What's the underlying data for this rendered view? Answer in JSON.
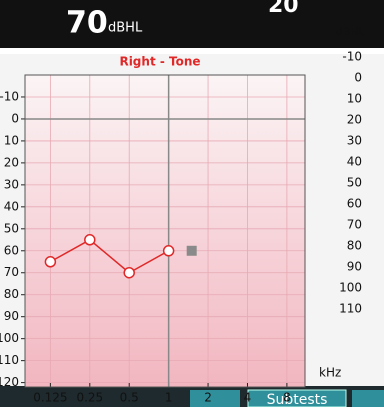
{
  "header": {
    "level": "70",
    "unit": "dBHL",
    "secondary": "20"
  },
  "right_panel": {
    "unit": "dBHL",
    "labels": [
      "-10",
      "0",
      "10",
      "20",
      "30",
      "40",
      "50",
      "60",
      "70",
      "80",
      "90",
      "100",
      "110"
    ]
  },
  "buttons": [
    "Subtests"
  ],
  "chart_data": {
    "type": "line",
    "title": "Right - Tone",
    "x_label": "kHz",
    "x": [
      0.125,
      0.25,
      0.5,
      1
    ],
    "series": [
      {
        "color": "#e02828",
        "values": [
          65,
          55,
          70,
          60
        ]
      }
    ],
    "cursor": {
      "x": 1.5,
      "y": 60,
      "color": "#8a8a8a"
    },
    "xlim": [
      0.08,
      11
    ],
    "xticks": [
      0.125,
      0.25,
      0.5,
      1,
      2,
      4,
      8
    ],
    "x_log": true,
    "ylim": [
      -20,
      122
    ],
    "y_inverted": true,
    "yticks": [
      -10,
      0,
      10,
      20,
      30,
      40,
      50,
      60,
      70,
      80,
      90,
      100,
      110,
      120
    ],
    "reference_lines": {
      "x": 1,
      "y": 0
    },
    "grid": true
  }
}
